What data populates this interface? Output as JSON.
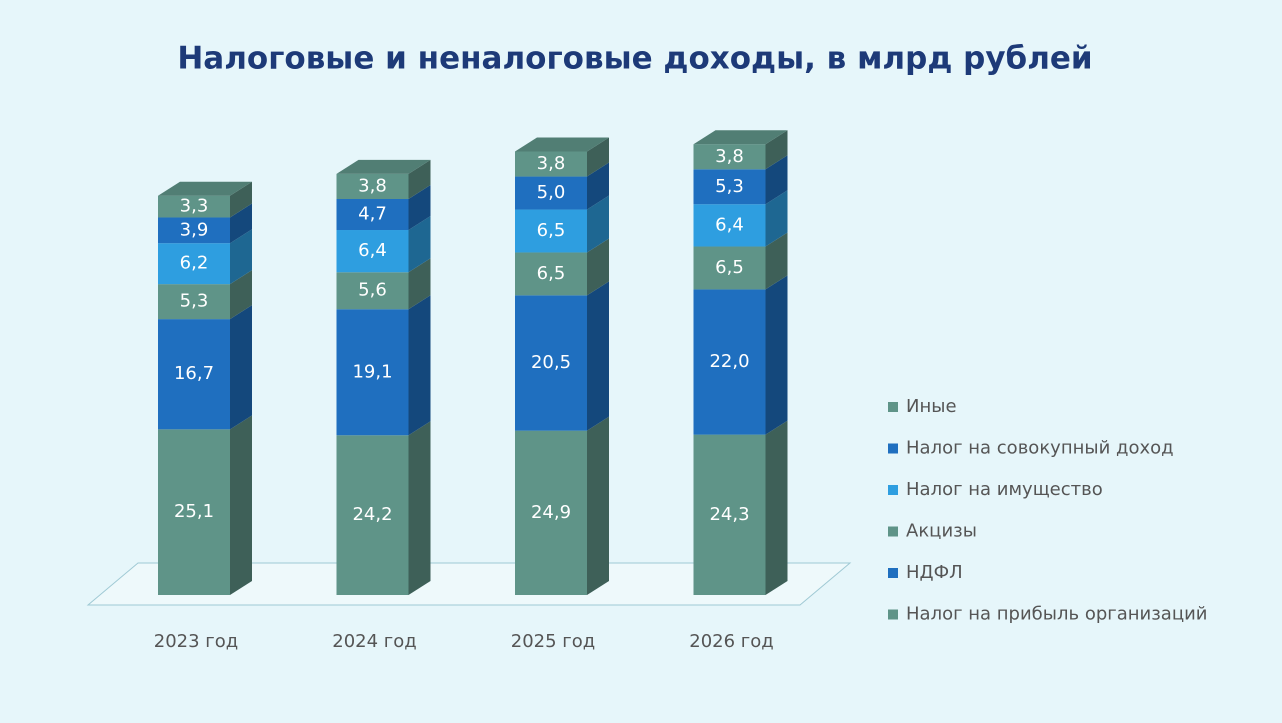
{
  "chart_data": {
    "type": "bar3d_stacked",
    "title": "Налоговые и неналоговые доходы, в млрд рублей",
    "categories": [
      "2023 год",
      "2024 год",
      "2025 год",
      "2026 год"
    ],
    "series": [
      {
        "name": "Налог на прибыль организаций",
        "color": "#5f9488",
        "values": [
          25.1,
          24.2,
          24.9,
          24.3
        ],
        "value_labels": [
          "25,1",
          "24,2",
          "24,9",
          "24,3"
        ]
      },
      {
        "name": "НДФЛ",
        "color": "#1f6fbf",
        "values": [
          16.7,
          19.1,
          20.5,
          22.0
        ],
        "value_labels": [
          "16,7",
          "19,1",
          "20,5",
          "22,0"
        ]
      },
      {
        "name": "Акцизы",
        "color": "#5f9488",
        "values": [
          5.3,
          5.6,
          6.5,
          6.5
        ],
        "value_labels": [
          "5,3",
          "5,6",
          "6,5",
          "6,5"
        ]
      },
      {
        "name": "Налог на имущество",
        "color": "#2e9ee0",
        "values": [
          6.2,
          6.4,
          6.5,
          6.4
        ],
        "value_labels": [
          "6,2",
          "6,4",
          "6,5",
          "6,4"
        ]
      },
      {
        "name": "Налог на совокупный доход",
        "color": "#1f6fbf",
        "values": [
          3.9,
          4.7,
          5.0,
          5.3
        ],
        "value_labels": [
          "3,9",
          "4,7",
          "5,0",
          "5,3"
        ]
      },
      {
        "name": "Иные",
        "color": "#5f9488",
        "values": [
          3.3,
          3.8,
          3.8,
          3.8
        ],
        "value_labels": [
          "3,3",
          "3,8",
          "3,8",
          "3,8"
        ]
      }
    ]
  }
}
